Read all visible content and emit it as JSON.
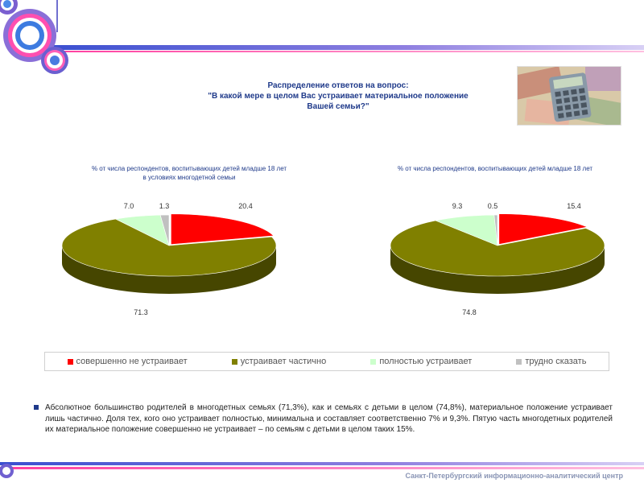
{
  "title": {
    "line1": "Распределение ответов на вопрос:",
    "line2": "\"В какой мере в целом Вас устраивает материальное положение",
    "line3": "Вашей семьи?\""
  },
  "charts": [
    {
      "subtitle_line1": "% от числа респондентов, воспитывающих детей младше 18 лет",
      "subtitle_line2": "в условиях многодетной семьи"
    },
    {
      "subtitle_line1": "% от числа респондентов, воспитывающих детей младше 18 лет",
      "subtitle_line2": ""
    }
  ],
  "chart_data": [
    {
      "type": "pie",
      "categories": [
        "совершенно не устраивает",
        "устраивает частично",
        "полностью устраивает",
        "трудно сказать"
      ],
      "values": [
        20.4,
        71.3,
        7.0,
        1.3
      ],
      "labels": [
        "20.4",
        "71.3",
        "7.0",
        "1.3"
      ],
      "colors": [
        "#ff0000",
        "#808000",
        "#ccffcc",
        "#c0c0c0"
      ]
    },
    {
      "type": "pie",
      "categories": [
        "совершенно не устраивает",
        "устраивает частично",
        "полностью устраивает",
        "трудно сказать"
      ],
      "values": [
        15.4,
        74.8,
        9.3,
        0.5
      ],
      "labels": [
        "15.4",
        "74.8",
        "9.3",
        "0.5"
      ],
      "colors": [
        "#ff0000",
        "#808000",
        "#ccffcc",
        "#c0c0c0"
      ]
    }
  ],
  "legend": [
    {
      "label": "совершенно не устраивает",
      "color": "#ff0000"
    },
    {
      "label": "устраивает частично",
      "color": "#808000"
    },
    {
      "label": "полностью устраивает",
      "color": "#ccffcc"
    },
    {
      "label": "трудно сказать",
      "color": "#c0c0c0"
    }
  ],
  "body_text": "Абсолютное большинство родителей в многодетных семьях (71,3%), как и семьях с детьми в целом (74,8%), материальное положение устраивает лишь частично. Доля тех, кого оно устраивает полностью, минимальна и составляет соответственно 7% и 9,3%. Пятую часть многодетных родителей их материальное положение совершенно не устраивает – по семьям с детьми в целом таких 15%.",
  "footer": "Санкт-Петербургский информационно-аналитический центр"
}
